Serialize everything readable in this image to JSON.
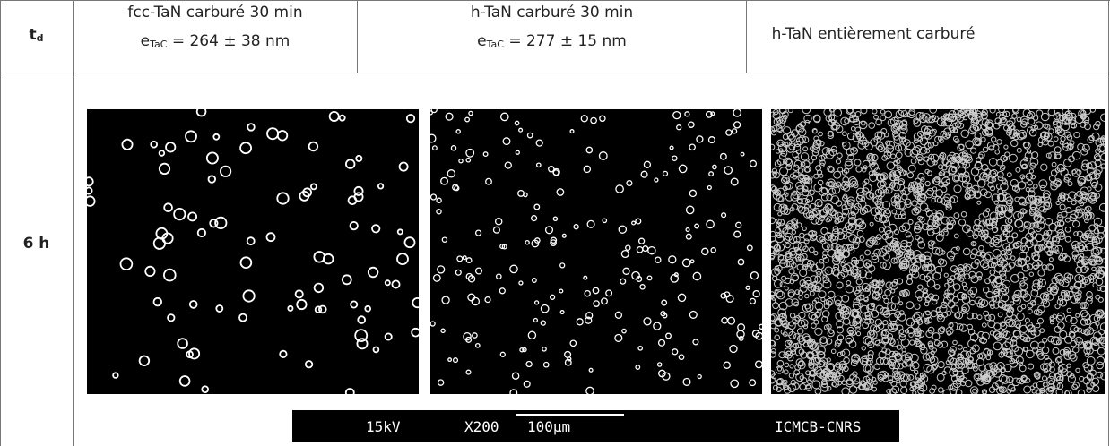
{
  "header": {
    "row_label": {
      "symbol": "t",
      "subscript": "d"
    },
    "columns": [
      {
        "title": "fcc-TaN carburé 30 min",
        "thickness": {
          "symbol": "e",
          "subscript": "TaC",
          "rest": " = 264 ± 38 nm"
        }
      },
      {
        "title": "h-TaN carburé 30 min",
        "thickness": {
          "symbol": "e",
          "subscript": "TaC",
          "rest": " = 277 ± 15 nm"
        }
      },
      {
        "title": "h-TaN entièrement carburé"
      }
    ]
  },
  "rows": [
    {
      "label": "6 h"
    }
  ],
  "scale_bar": {
    "voltage": "15kV",
    "magnification": "X200",
    "length": "100µm",
    "lab": "ICMCB-CNRS"
  }
}
